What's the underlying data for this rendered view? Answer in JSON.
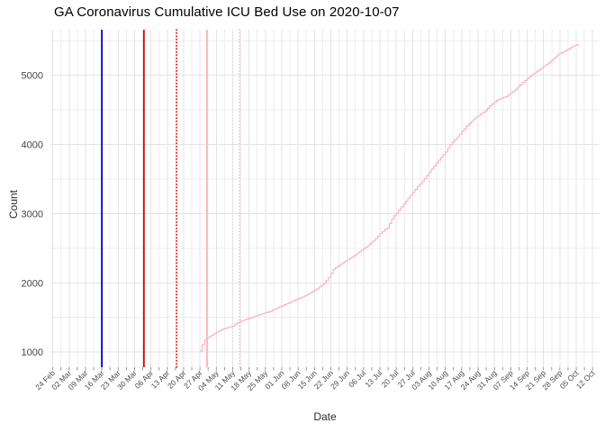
{
  "chart_data": {
    "type": "line",
    "title": "GA Coronavirus Cumulative ICU Bed Use on 2020-10-07",
    "xlabel": "Date",
    "ylabel": "Count",
    "x_domain": [
      "2020-02-23",
      "2020-10-15"
    ],
    "ylim": [
      780,
      5660
    ],
    "y_ticks": [
      1000,
      2000,
      3000,
      4000,
      5000
    ],
    "x_tick_start_date": "2020-02-24",
    "x_tick_interval_days": 7,
    "x_tick_labels": [
      "24 Feb",
      "02 Mar",
      "09 Mar",
      "16 Mar",
      "23 Mar",
      "30 Mar",
      "06 Apr",
      "13 Apr",
      "20 Apr",
      "27 Apr",
      "04 May",
      "11 May",
      "18 May",
      "25 May",
      "01 Jun",
      "08 Jun",
      "15 Jun",
      "22 Jun",
      "29 Jun",
      "06 Jul",
      "13 Jul",
      "20 Jul",
      "27 Jul",
      "03 Aug",
      "10 Aug",
      "17 Aug",
      "24 Aug",
      "31 Aug",
      "07 Sep",
      "14 Sep",
      "21 Sep",
      "28 Sep",
      "05 Oct",
      "12 Oct"
    ],
    "grid": {
      "show": true,
      "major_color": "#e3e3e3",
      "minor_color": "#eeeeee",
      "minor_y_step": 500,
      "x_minor_offset_days": 3.5,
      "tick_color": "#8a8a8a"
    },
    "legend": "none",
    "vlines": [
      {
        "date": "2020-03-16",
        "color": "#0000cd",
        "style": "solid",
        "width": 1.8
      },
      {
        "date": "2020-04-03",
        "color": "#e00000",
        "style": "solid",
        "width": 1.8
      },
      {
        "date": "2020-04-17",
        "color": "#e00000",
        "style": "dotted",
        "width": 1.6
      },
      {
        "date": "2020-04-30",
        "color": "#f8b6c2",
        "style": "solid",
        "width": 1.8
      },
      {
        "date": "2020-05-14",
        "color": "#f8b6c2",
        "style": "dotted",
        "width": 1.6
      }
    ],
    "series": [
      {
        "name": "cumulative-icu-bed-use",
        "color": "#f8b6c2",
        "points": [
          [
            "2020-04-27",
            1015
          ],
          [
            "2020-04-28",
            1105
          ],
          [
            "2020-04-29",
            1175
          ],
          [
            "2020-04-30",
            1200
          ],
          [
            "2020-05-01",
            1225
          ],
          [
            "2020-05-03",
            1265
          ],
          [
            "2020-05-05",
            1305
          ],
          [
            "2020-05-07",
            1335
          ],
          [
            "2020-05-09",
            1355
          ],
          [
            "2020-05-11",
            1375
          ],
          [
            "2020-05-12",
            1405
          ],
          [
            "2020-05-14",
            1440
          ],
          [
            "2020-05-17",
            1478
          ],
          [
            "2020-05-20",
            1512
          ],
          [
            "2020-05-23",
            1548
          ],
          [
            "2020-05-27",
            1590
          ],
          [
            "2020-05-30",
            1638
          ],
          [
            "2020-06-03",
            1698
          ],
          [
            "2020-06-06",
            1742
          ],
          [
            "2020-06-10",
            1797
          ],
          [
            "2020-06-13",
            1852
          ],
          [
            "2020-06-16",
            1915
          ],
          [
            "2020-06-19",
            1992
          ],
          [
            "2020-06-21",
            2075
          ],
          [
            "2020-06-23",
            2195
          ],
          [
            "2020-06-26",
            2268
          ],
          [
            "2020-06-29",
            2332
          ],
          [
            "2020-07-02",
            2398
          ],
          [
            "2020-07-04",
            2447
          ],
          [
            "2020-07-07",
            2520
          ],
          [
            "2020-07-10",
            2605
          ],
          [
            "2020-07-13",
            2710
          ],
          [
            "2020-07-15",
            2772
          ],
          [
            "2020-07-16",
            2788
          ],
          [
            "2020-07-18",
            2925
          ],
          [
            "2020-07-20",
            3010
          ],
          [
            "2020-07-23",
            3136
          ],
          [
            "2020-07-26",
            3268
          ],
          [
            "2020-07-29",
            3392
          ],
          [
            "2020-07-31",
            3465
          ],
          [
            "2020-08-03",
            3598
          ],
          [
            "2020-08-06",
            3732
          ],
          [
            "2020-08-08",
            3812
          ],
          [
            "2020-08-10",
            3892
          ],
          [
            "2020-08-12",
            4000
          ],
          [
            "2020-08-15",
            4108
          ],
          [
            "2020-08-19",
            4267
          ],
          [
            "2020-08-23",
            4392
          ],
          [
            "2020-08-27",
            4488
          ],
          [
            "2020-08-29",
            4560
          ],
          [
            "2020-09-01",
            4640
          ],
          [
            "2020-09-03",
            4672
          ],
          [
            "2020-09-05",
            4695
          ],
          [
            "2020-09-09",
            4800
          ],
          [
            "2020-09-12",
            4898
          ],
          [
            "2020-09-15",
            4982
          ],
          [
            "2020-09-19",
            5080
          ],
          [
            "2020-09-23",
            5177
          ],
          [
            "2020-09-27",
            5298
          ],
          [
            "2020-09-30",
            5352
          ],
          [
            "2020-10-02",
            5392
          ],
          [
            "2020-10-04",
            5428
          ],
          [
            "2020-10-06",
            5448
          ]
        ]
      }
    ]
  }
}
